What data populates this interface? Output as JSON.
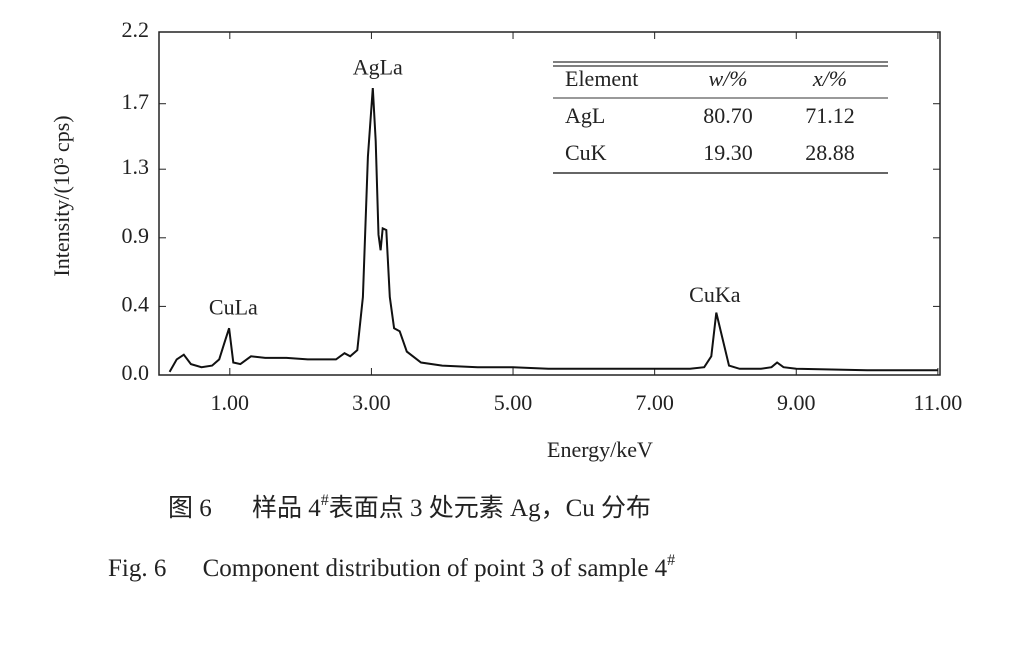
{
  "chart_data": {
    "type": "line",
    "x_label": "Energy/keV",
    "y_label": "Intensity/(10³ cps)",
    "color": "#111111",
    "xlim": [
      0,
      11.03
    ],
    "ylim": [
      0,
      2.2
    ],
    "xticks": [
      {
        "value": 1,
        "label": "1.00"
      },
      {
        "value": 3,
        "label": "3.00"
      },
      {
        "value": 5,
        "label": "5.00"
      },
      {
        "value": 7,
        "label": "7.00"
      },
      {
        "value": 9,
        "label": "9.00"
      },
      {
        "value": 11,
        "label": "11.00"
      }
    ],
    "yticks": [
      {
        "value": 0,
        "label": "0.0"
      },
      {
        "value": 0.44,
        "label": "0.4"
      },
      {
        "value": 0.88,
        "label": "0.9"
      },
      {
        "value": 1.32,
        "label": "1.3"
      },
      {
        "value": 1.74,
        "label": "1.7"
      },
      2.2
    ],
    "x": [
      0.15,
      0.25,
      0.35,
      0.45,
      0.6,
      0.75,
      0.85,
      0.92,
      0.99,
      1.05,
      1.15,
      1.3,
      1.5,
      1.8,
      2.1,
      2.5,
      2.62,
      2.7,
      2.8,
      2.88,
      2.95,
      3.02,
      3.06,
      3.1,
      3.13,
      3.16,
      3.21,
      3.26,
      3.32,
      3.4,
      3.5,
      3.7,
      4.0,
      4.5,
      5.0,
      5.5,
      6.0,
      6.5,
      7.0,
      7.5,
      7.7,
      7.8,
      7.87,
      7.95,
      8.05,
      8.2,
      8.5,
      8.65,
      8.73,
      8.82,
      9.0,
      10.0,
      11.0
    ],
    "values": [
      0.02,
      0.1,
      0.13,
      0.07,
      0.05,
      0.06,
      0.1,
      0.2,
      0.3,
      0.08,
      0.07,
      0.12,
      0.11,
      0.11,
      0.1,
      0.1,
      0.14,
      0.12,
      0.16,
      0.5,
      1.4,
      1.84,
      1.5,
      0.9,
      0.8,
      0.94,
      0.93,
      0.5,
      0.3,
      0.28,
      0.15,
      0.08,
      0.06,
      0.05,
      0.05,
      0.04,
      0.04,
      0.04,
      0.04,
      0.04,
      0.05,
      0.12,
      0.4,
      0.25,
      0.06,
      0.04,
      0.04,
      0.05,
      0.08,
      0.05,
      0.04,
      0.03,
      0.03
    ],
    "annotations": [
      {
        "text": "AgLa",
        "x": 3.09,
        "y": 1.96
      },
      {
        "text": "CuLa",
        "x": 1.05,
        "y": 0.42
      },
      {
        "text": "CuKa",
        "x": 7.85,
        "y": 0.5
      }
    ],
    "table": {
      "columns": [
        "Element",
        "w/%",
        "x/%"
      ],
      "rows": [
        [
          "AgL",
          "80.70",
          "71.12"
        ],
        [
          "CuK",
          "19.30",
          "28.88"
        ]
      ]
    }
  },
  "caption_cn": {
    "label": "图 6",
    "text": "样品 4",
    "sup": "#",
    "rest": "表面点 3 处元素 Ag，Cu 分布"
  },
  "caption_en": {
    "label": "Fig. 6",
    "text": "Component distribution of point 3 of sample 4",
    "sup": "#"
  }
}
